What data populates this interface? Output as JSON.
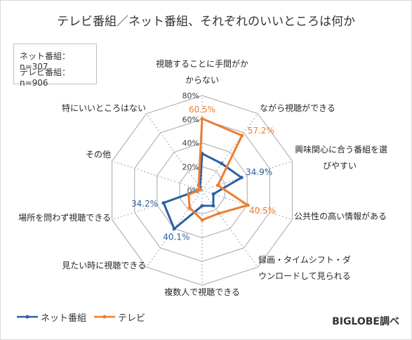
{
  "title": "テレビ番組／ネット番組、それぞれのいいところは何か",
  "samples": {
    "net": "ネット番組： n=307",
    "tv": "テレビ番組： n=906"
  },
  "brand": "BIGLOBE調べ",
  "colors": {
    "net": "#2e5fa3",
    "tv": "#ed7d31",
    "grid": "#a6a6a6",
    "spoke": "#bfbfbf"
  },
  "chart_data": {
    "type": "radar",
    "title": "テレビ番組／ネット番組、それぞれのいいところは何か",
    "categories": [
      [
        "視聴することに手間がか",
        "からない"
      ],
      [
        "ながら視聴ができる"
      ],
      [
        "興味関心に合う番組を選",
        "びやすい"
      ],
      [
        "公共性の高い情報がある"
      ],
      [
        "録画・タイムシフト・ダ",
        "ウンロードして見られる"
      ],
      [
        "複数人で視聴できる"
      ],
      [
        "見たい時に視聴できる"
      ],
      [
        "場所を問わず視聴できる"
      ],
      [
        "その他"
      ],
      [
        "特にいいところはない"
      ]
    ],
    "rlim": [
      0,
      80
    ],
    "ticks": [
      0,
      20,
      40,
      60,
      80
    ],
    "tick_labels": [
      "0%",
      "20%",
      "40%",
      "60%",
      "80%"
    ],
    "series": [
      {
        "name": "ネット番組",
        "key": "net",
        "values": [
          31,
          28,
          34.9,
          10,
          16,
          13,
          40.1,
          34.2,
          2,
          3
        ],
        "labels": [
          "",
          "",
          "34.9%",
          "",
          "",
          "",
          "40.1%",
          "34.2%",
          "",
          ""
        ]
      },
      {
        "name": "テレビ",
        "key": "tv",
        "values": [
          60.5,
          57.2,
          14,
          40.5,
          24,
          25,
          18,
          12,
          2,
          5
        ],
        "labels": [
          "60.5%",
          "57.2%",
          "",
          "40.5%",
          "",
          "",
          "",
          "",
          "",
          ""
        ]
      }
    ],
    "legend_position": "bottom-left"
  }
}
